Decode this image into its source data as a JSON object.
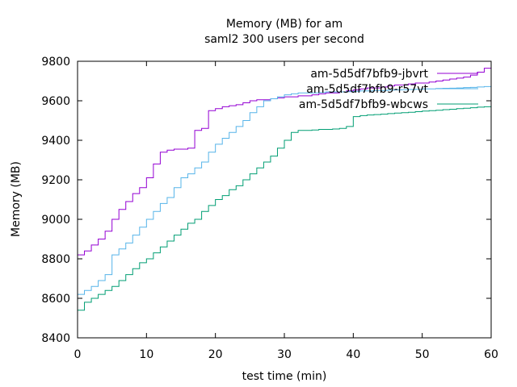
{
  "chart_data": {
    "type": "line",
    "title_line1": "Memory (MB) for am",
    "title_line2": "saml2 300 users per second",
    "xlabel": "test time (min)",
    "ylabel": "Memory (MB)",
    "xlim": [
      0,
      60
    ],
    "ylim": [
      8400,
      9800
    ],
    "xticks": [
      0,
      10,
      20,
      30,
      40,
      50,
      60
    ],
    "yticks": [
      8400,
      8600,
      8800,
      9000,
      9200,
      9400,
      9600,
      9800
    ],
    "legend_position": "top-right",
    "grid": false,
    "series": [
      {
        "name": "am-5d5df7bfb9-jbvrt",
        "color": "#9400d3",
        "x": [
          0,
          1,
          2,
          3,
          4,
          5,
          6,
          7,
          8,
          9,
          10,
          11,
          12,
          13,
          14,
          15,
          16,
          17,
          18,
          19,
          20,
          21,
          22,
          23,
          24,
          25,
          26,
          27,
          28,
          29,
          30,
          31,
          32,
          33,
          34,
          35,
          36,
          37,
          38,
          39,
          40,
          41,
          42,
          43,
          44,
          45,
          46,
          47,
          48,
          49,
          50,
          51,
          52,
          53,
          54,
          55,
          56,
          57,
          58,
          59,
          60
        ],
        "y": [
          8820,
          8840,
          8870,
          8900,
          8940,
          9000,
          9050,
          9090,
          9130,
          9160,
          9210,
          9280,
          9340,
          9350,
          9355,
          9355,
          9360,
          9450,
          9460,
          9550,
          9560,
          9570,
          9575,
          9580,
          9590,
          9600,
          9605,
          9605,
          9610,
          9615,
          9620,
          9620,
          9625,
          9625,
          9630,
          9635,
          9640,
          9640,
          9645,
          9650,
          9655,
          9660,
          9665,
          9665,
          9670,
          9675,
          9680,
          9680,
          9685,
          9690,
          9690,
          9695,
          9700,
          9705,
          9710,
          9715,
          9720,
          9730,
          9745,
          9765,
          9770
        ]
      },
      {
        "name": "am-5d5df7bfb9-r57vt",
        "color": "#56b4e9",
        "x": [
          0,
          1,
          2,
          3,
          4,
          5,
          6,
          7,
          8,
          9,
          10,
          11,
          12,
          13,
          14,
          15,
          16,
          17,
          18,
          19,
          20,
          21,
          22,
          23,
          24,
          25,
          26,
          27,
          28,
          29,
          30,
          31,
          32,
          33,
          34,
          35,
          36,
          37,
          38,
          39,
          40,
          41,
          42,
          43,
          44,
          45,
          46,
          47,
          48,
          49,
          50,
          51,
          52,
          53,
          54,
          55,
          56,
          57,
          58,
          59,
          60
        ],
        "y": [
          8620,
          8640,
          8660,
          8690,
          8720,
          8820,
          8850,
          8880,
          8920,
          8960,
          9000,
          9040,
          9080,
          9110,
          9160,
          9210,
          9230,
          9260,
          9290,
          9340,
          9380,
          9410,
          9440,
          9470,
          9500,
          9540,
          9570,
          9600,
          9610,
          9620,
          9630,
          9635,
          9640,
          9640,
          9640,
          9642,
          9645,
          9645,
          9645,
          9646,
          9648,
          9650,
          9650,
          9652,
          9652,
          9654,
          9655,
          9656,
          9657,
          9658,
          9660,
          9660,
          9662,
          9663,
          9664,
          9665,
          9667,
          9668,
          9670,
          9672,
          9672
        ]
      },
      {
        "name": "am-5d5df7bfb9-wbcws",
        "color": "#009e73",
        "x": [
          0,
          1,
          2,
          3,
          4,
          5,
          6,
          7,
          8,
          9,
          10,
          11,
          12,
          13,
          14,
          15,
          16,
          17,
          18,
          19,
          20,
          21,
          22,
          23,
          24,
          25,
          26,
          27,
          28,
          29,
          30,
          31,
          32,
          33,
          34,
          35,
          36,
          37,
          38,
          39,
          40,
          41,
          42,
          43,
          44,
          45,
          46,
          47,
          48,
          49,
          50,
          51,
          52,
          53,
          54,
          55,
          56,
          57,
          58,
          59,
          60
        ],
        "y": [
          8540,
          8580,
          8600,
          8620,
          8640,
          8660,
          8690,
          8720,
          8750,
          8780,
          8800,
          8830,
          8860,
          8890,
          8920,
          8950,
          8980,
          9000,
          9040,
          9070,
          9100,
          9120,
          9150,
          9170,
          9200,
          9230,
          9260,
          9290,
          9320,
          9360,
          9400,
          9440,
          9450,
          9450,
          9452,
          9455,
          9455,
          9457,
          9460,
          9470,
          9520,
          9525,
          9528,
          9530,
          9532,
          9535,
          9538,
          9540,
          9542,
          9545,
          9548,
          9550,
          9552,
          9555,
          9557,
          9560,
          9562,
          9565,
          9568,
          9570,
          9570
        ]
      }
    ]
  }
}
